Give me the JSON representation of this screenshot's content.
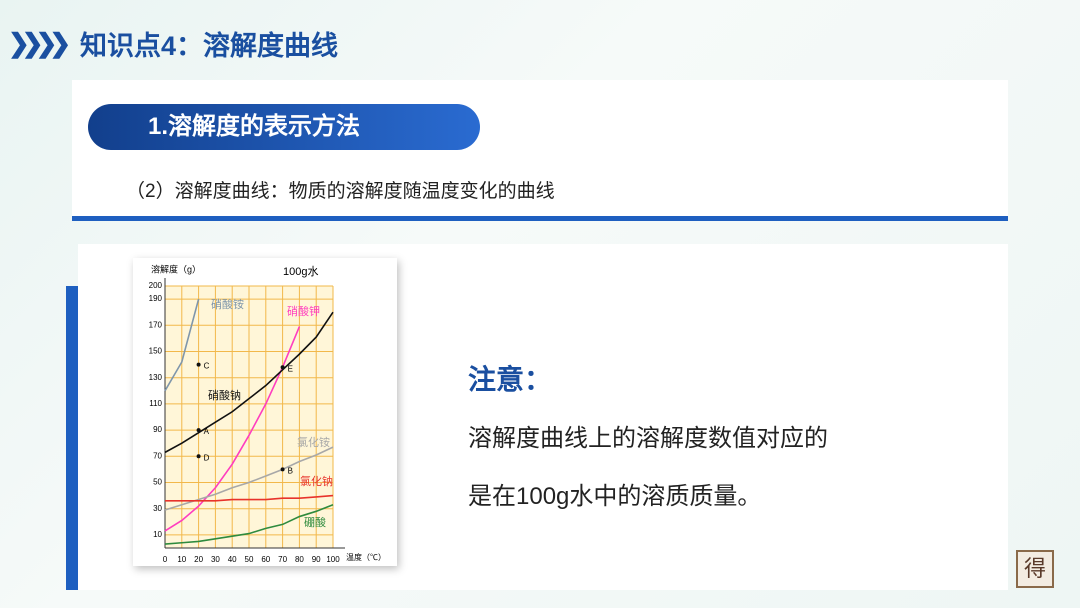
{
  "header": {
    "title": "知识点4：溶解度曲线"
  },
  "section": {
    "label": "1.溶解度的表示方法",
    "subtitle": "（2）溶解度曲线：物质的溶解度随温度变化的曲线"
  },
  "note": {
    "title": "注意：",
    "lines": [
      "溶解度曲线上的溶解度数值对应的",
      "是在100g水中的溶质质量。"
    ]
  },
  "stamp": "得",
  "chart_data": {
    "type": "line",
    "title": "100g水",
    "y_label": "溶解度（g）",
    "x_label": "温度（℃）",
    "xlim": [
      0,
      100
    ],
    "xticks": [
      0,
      10,
      20,
      30,
      40,
      50,
      60,
      70,
      80,
      90,
      100
    ],
    "ylim": [
      0,
      200
    ],
    "yticks": [
      10,
      30,
      50,
      70,
      90,
      110,
      130,
      150,
      170,
      190,
      200
    ],
    "grid": true,
    "series": [
      {
        "name": "硝酸铵",
        "color": "#7f96ab",
        "x": [
          0,
          10,
          20
        ],
        "values": [
          120,
          142,
          190
        ]
      },
      {
        "name": "硝酸钾",
        "color": "#ff3dbf",
        "x": [
          0,
          10,
          20,
          30,
          40,
          50,
          60,
          70,
          80
        ],
        "values": [
          13,
          21,
          32,
          46,
          64,
          86,
          110,
          138,
          169
        ]
      },
      {
        "name": "硝酸钠",
        "color": "#111111",
        "x": [
          0,
          10,
          20,
          30,
          40,
          50,
          60,
          70,
          80,
          90,
          100
        ],
        "values": [
          73,
          80,
          88,
          96,
          104,
          114,
          124,
          136,
          148,
          161,
          180
        ]
      },
      {
        "name": "氯化铵",
        "color": "#a8a8a8",
        "x": [
          0,
          10,
          20,
          30,
          40,
          50,
          60,
          70,
          80,
          90,
          100
        ],
        "values": [
          29,
          33,
          37,
          41,
          46,
          50,
          55,
          60,
          66,
          71,
          77
        ]
      },
      {
        "name": "氯化钠",
        "color": "#e8332b",
        "x": [
          0,
          10,
          20,
          30,
          40,
          50,
          60,
          70,
          80,
          90,
          100
        ],
        "values": [
          36,
          36,
          36,
          36,
          37,
          37,
          37,
          38,
          38,
          39,
          40
        ]
      },
      {
        "name": "硼酸",
        "color": "#2e8b3e",
        "x": [
          0,
          10,
          20,
          30,
          40,
          50,
          60,
          70,
          80,
          90,
          100
        ],
        "values": [
          3,
          4,
          5,
          7,
          9,
          11,
          15,
          18,
          24,
          28,
          33
        ]
      }
    ],
    "points": [
      {
        "label": "C",
        "x": 20,
        "y": 140
      },
      {
        "label": "A",
        "x": 20,
        "y": 90
      },
      {
        "label": "D",
        "x": 20,
        "y": 70
      },
      {
        "label": "E",
        "x": 70,
        "y": 138
      },
      {
        "label": "B",
        "x": 70,
        "y": 60
      }
    ]
  }
}
